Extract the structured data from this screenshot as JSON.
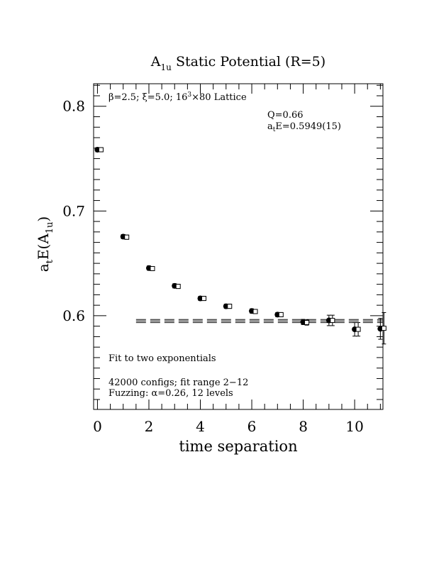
{
  "chart_data": {
    "type": "scatter",
    "title_main": "A",
    "title_sub": "1u",
    "title_rest": " Static Potential (R=5)",
    "xlabel": "time separation",
    "ylabel_a": "a",
    "ylabel_t": "t",
    "ylabel_E": "E(A",
    "ylabel_sub": "1u",
    "ylabel_close": ")",
    "xlim": [
      -0.15,
      11.1
    ],
    "ylim": [
      0.5105,
      0.8215
    ],
    "xticks": [
      0,
      2,
      4,
      6,
      8,
      10
    ],
    "xtick_labels": [
      "0",
      "2",
      "4",
      "6",
      "8",
      "10"
    ],
    "yticks": [
      0.6,
      0.7,
      0.8
    ],
    "ytick_labels": [
      "0.6",
      "0.7",
      "0.8"
    ],
    "series": [
      {
        "marker": "filled-circle",
        "x": [
          0,
          1,
          2,
          3,
          4,
          5,
          6,
          7,
          8,
          9,
          10,
          11
        ],
        "y": [
          0.7585,
          0.6755,
          0.6455,
          0.6285,
          0.6165,
          0.609,
          0.6045,
          0.601,
          0.594,
          0.5955,
          0.587,
          0.5875
        ],
        "err": [
          0.0012,
          0.0012,
          0.0012,
          0.0012,
          0.0012,
          0.0012,
          0.0012,
          0.0012,
          0.0025,
          0.005,
          0.0065,
          0.01
        ]
      },
      {
        "marker": "open-square",
        "x": [
          0,
          1,
          2,
          3,
          4,
          5,
          6,
          7,
          8,
          9,
          10,
          11
        ],
        "y": [
          0.7585,
          0.675,
          0.645,
          0.628,
          0.6165,
          0.609,
          0.604,
          0.601,
          0.5935,
          0.5955,
          0.587,
          0.588
        ],
        "err": [
          0.0012,
          0.0012,
          0.0012,
          0.0012,
          0.0012,
          0.0012,
          0.0012,
          0.0012,
          0.0025,
          0.005,
          0.0065,
          0.015
        ]
      }
    ],
    "fit": {
      "x_start": 1.5,
      "x_end": 11.1,
      "value": 0.5949,
      "error": 0.0015
    },
    "annotations": {
      "lattice_beta": "β=2.5; ξ=5.0; 16",
      "lattice_sup": "3",
      "lattice_rest": "×80 Lattice",
      "q_value": "Q=0.66",
      "energy_a": "a",
      "energy_t": "t",
      "energy_rest": "E=0.5949(15)",
      "fit_note": "Fit to two exponentials",
      "configs_note": "42000 configs; fit range 2−12",
      "fuzzing_note": "Fuzzing: α=0.26, 12 levels"
    }
  }
}
